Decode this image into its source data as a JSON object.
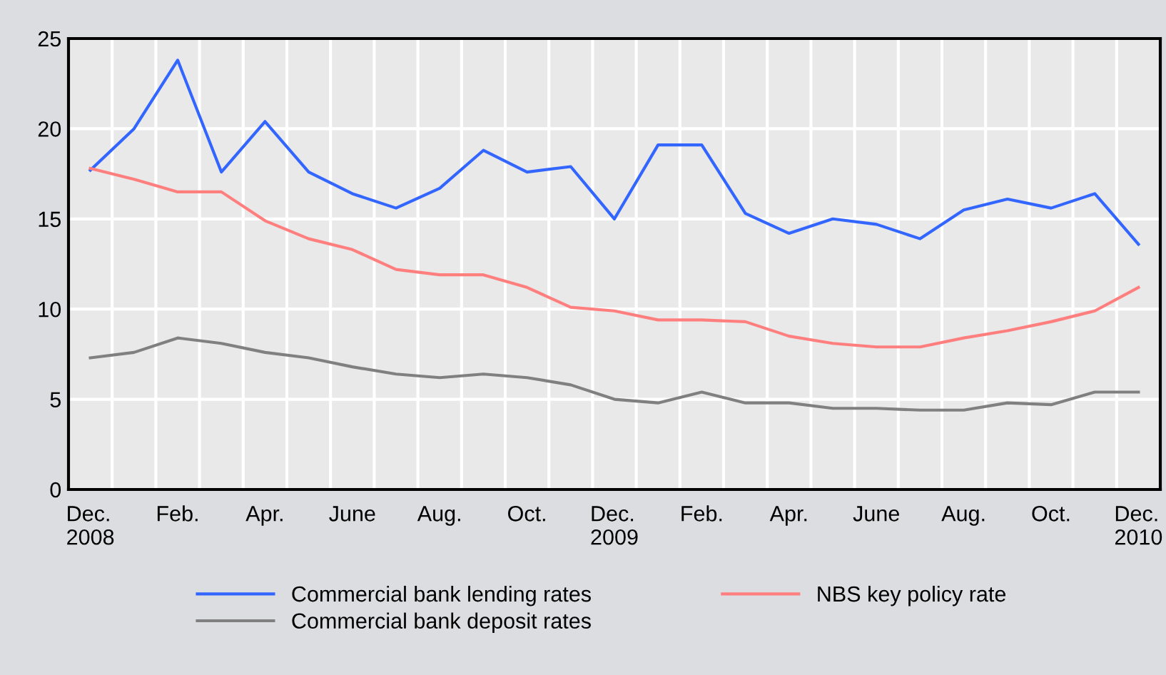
{
  "chart_data": {
    "type": "line",
    "categories": [
      "Dec.\n2008",
      null,
      "Feb.",
      null,
      "Apr.",
      null,
      "June",
      null,
      "Aug.",
      null,
      "Oct.",
      null,
      "Dec.\n2009",
      null,
      "Feb.",
      null,
      "Apr.",
      null,
      "June",
      null,
      "Aug.",
      null,
      "Oct.",
      null,
      "Dec.\n2010"
    ],
    "series": [
      {
        "name": "Commercial bank lending rates",
        "color": "#3366ff",
        "values": [
          17.7,
          20.0,
          23.8,
          17.6,
          20.4,
          17.6,
          16.4,
          15.6,
          16.7,
          18.8,
          17.6,
          17.9,
          15.0,
          19.1,
          19.1,
          15.3,
          14.2,
          15.0,
          14.7,
          13.9,
          15.5,
          16.1,
          15.6,
          16.4,
          13.6
        ]
      },
      {
        "name": "Commercial bank deposit rates",
        "color": "#808080",
        "values": [
          7.3,
          7.6,
          8.4,
          8.1,
          7.6,
          7.3,
          6.8,
          6.4,
          6.2,
          6.4,
          6.2,
          5.8,
          5.0,
          4.8,
          5.4,
          4.8,
          4.8,
          4.5,
          4.5,
          4.4,
          4.4,
          4.8,
          4.7,
          5.4,
          5.4
        ]
      },
      {
        "name": "NBS key policy rate",
        "color": "#ff7f7f",
        "values": [
          17.8,
          17.2,
          16.5,
          16.5,
          14.9,
          13.9,
          13.3,
          12.2,
          11.9,
          11.9,
          11.2,
          10.1,
          9.9,
          9.4,
          9.4,
          9.3,
          8.5,
          8.1,
          7.9,
          7.9,
          8.4,
          8.8,
          9.3,
          9.9,
          11.2
        ]
      }
    ],
    "ylim": [
      0,
      25
    ],
    "yticks": [
      0,
      5,
      10,
      15,
      20,
      25
    ],
    "grid": true,
    "legend": "bottom",
    "marker": "none",
    "line_style": "solid"
  }
}
